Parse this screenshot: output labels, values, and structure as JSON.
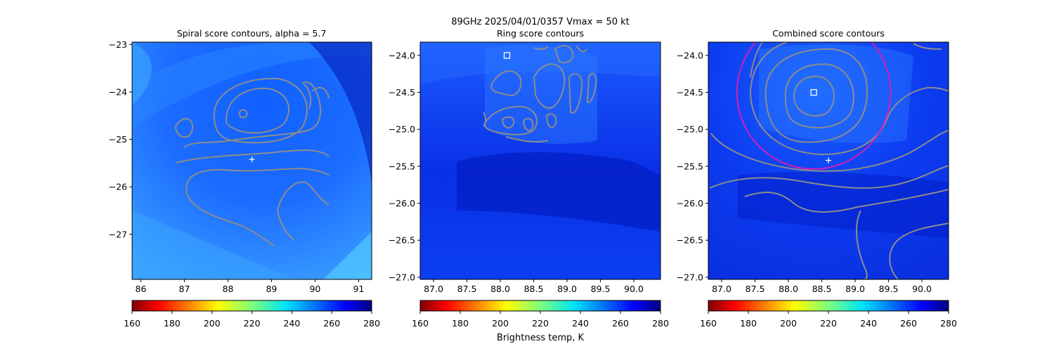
{
  "figure": {
    "suptitle_line1": "89GHz  2025/04/01/0357    Vmax = 50 kt",
    "colorbar_label": "Brightness temp, K"
  },
  "colors": {
    "contour": "#8c8c8c",
    "circle": "#d21fb4",
    "marker": "#ffffff",
    "field_low": "#0a3ef0",
    "field_dark": "#0016c8"
  },
  "chart_data": [
    {
      "type": "heatmap",
      "title": "Spiral score contours, alpha =  5.7",
      "xlim": [
        85.8,
        91.3
      ],
      "ylim": [
        -27.95,
        -22.95
      ],
      "xticks": [
        "86",
        "87",
        "88",
        "89",
        "90",
        "91"
      ],
      "xtick_values": [
        86,
        87,
        88,
        89,
        90,
        91
      ],
      "yticks": [
        "−23",
        "−24",
        "−25",
        "−26",
        "−27"
      ],
      "ytick_values": [
        -23,
        -24,
        -25,
        -26,
        -27
      ],
      "markers": [
        {
          "type": "plus",
          "x": 88.55,
          "y": -25.42
        }
      ],
      "contour_count": 5,
      "colorbar": {
        "vmin": 160,
        "vmax": 280,
        "ticks": [
          "160",
          "180",
          "200",
          "220",
          "240",
          "260",
          "280"
        ],
        "tick_values": [
          160,
          180,
          200,
          220,
          240,
          260,
          280
        ]
      }
    },
    {
      "type": "heatmap",
      "title": "Ring score contours",
      "xlim": [
        86.8,
        90.4
      ],
      "ylim": [
        -27.03,
        -23.82
      ],
      "xticks": [
        "87.0",
        "87.5",
        "88.0",
        "88.5",
        "89.0",
        "89.5",
        "90.0"
      ],
      "xtick_values": [
        87.0,
        87.5,
        88.0,
        88.5,
        89.0,
        89.5,
        90.0
      ],
      "yticks": [
        "−24.0",
        "−24.5",
        "−25.0",
        "−25.5",
        "−26.0",
        "−26.5",
        "−27.0"
      ],
      "ytick_values": [
        -24.0,
        -24.5,
        -25.0,
        -25.5,
        -26.0,
        -26.5,
        -27.0
      ],
      "markers": [
        {
          "type": "square",
          "x": 88.1,
          "y": -24.0
        }
      ],
      "colorbar": {
        "vmin": 160,
        "vmax": 280,
        "ticks": [
          "160",
          "180",
          "200",
          "220",
          "240",
          "260",
          "280"
        ],
        "tick_values": [
          160,
          180,
          200,
          220,
          240,
          260,
          280
        ]
      }
    },
    {
      "type": "heatmap",
      "title": "Combined score contours",
      "xlim": [
        86.8,
        90.4
      ],
      "ylim": [
        -27.03,
        -23.82
      ],
      "xticks": [
        "87.0",
        "87.5",
        "88.0",
        "88.5",
        "89.0",
        "89.5",
        "90.0"
      ],
      "xtick_values": [
        87.0,
        87.5,
        88.0,
        88.5,
        89.0,
        89.5,
        90.0
      ],
      "yticks": [
        "−24.0",
        "−24.5",
        "−25.0",
        "−25.5",
        "−26.0",
        "−26.5",
        "−27.0"
      ],
      "ytick_values": [
        -24.0,
        -24.5,
        -25.0,
        -25.5,
        -26.0,
        -26.5,
        -27.0
      ],
      "markers": [
        {
          "type": "square",
          "x": 88.38,
          "y": -24.5
        },
        {
          "type": "plus",
          "x": 88.6,
          "y": -25.42
        }
      ],
      "circle": {
        "cx": 88.38,
        "cy": -24.5,
        "r": 1.15
      },
      "colorbar": {
        "vmin": 160,
        "vmax": 280,
        "ticks": [
          "160",
          "180",
          "200",
          "220",
          "240",
          "260",
          "280"
        ],
        "tick_values": [
          160,
          180,
          200,
          220,
          240,
          260,
          280
        ]
      }
    }
  ]
}
